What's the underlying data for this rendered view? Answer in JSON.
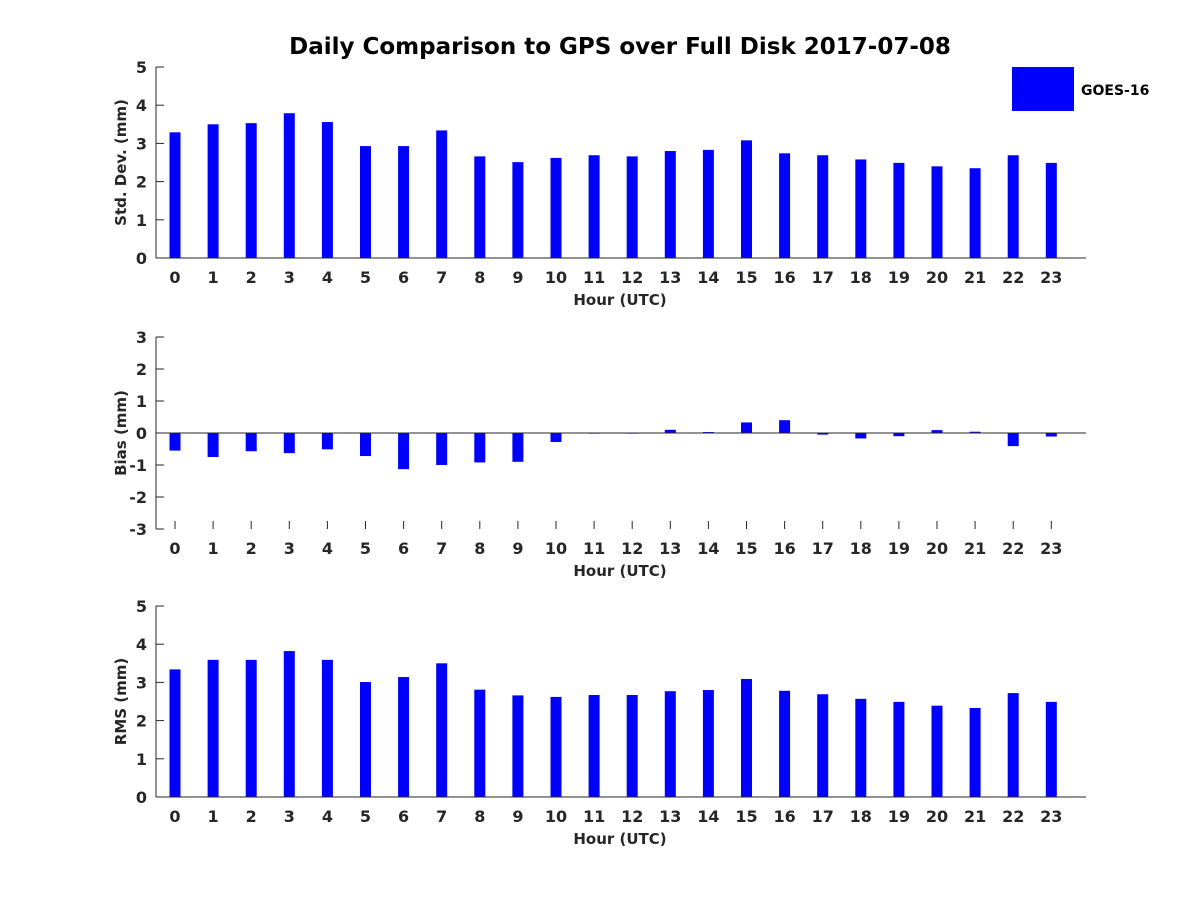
{
  "title": "Daily Comparison to GPS over Full Disk 2017-07-08",
  "colors": {
    "bar": "#0000ff",
    "axis": "#262626"
  },
  "legend": {
    "label": "GOES-16",
    "position": "top-right"
  },
  "chart_data": [
    {
      "type": "bar",
      "title": "Daily Comparison to GPS over Full Disk 2017-07-08",
      "xlabel": "Hour (UTC)",
      "ylabel": "Std. Dev. (mm)",
      "categories": [
        "0",
        "1",
        "2",
        "3",
        "4",
        "5",
        "6",
        "7",
        "8",
        "9",
        "10",
        "11",
        "12",
        "13",
        "14",
        "15",
        "16",
        "17",
        "18",
        "19",
        "20",
        "21",
        "22",
        "23"
      ],
      "series": [
        {
          "name": "GOES-16",
          "values": [
            3.29,
            3.5,
            3.53,
            3.79,
            3.56,
            2.93,
            2.93,
            3.34,
            2.66,
            2.51,
            2.62,
            2.69,
            2.66,
            2.8,
            2.83,
            3.08,
            2.74,
            2.69,
            2.58,
            2.49,
            2.4,
            2.35,
            2.69,
            2.49
          ]
        }
      ],
      "ylim": [
        0,
        5
      ],
      "yticks": [
        "0",
        "1",
        "2",
        "3",
        "4",
        "5"
      ]
    },
    {
      "type": "bar",
      "xlabel": "Hour (UTC)",
      "ylabel": "Bias (mm)",
      "categories": [
        "0",
        "1",
        "2",
        "3",
        "4",
        "5",
        "6",
        "7",
        "8",
        "9",
        "10",
        "11",
        "12",
        "13",
        "14",
        "15",
        "16",
        "17",
        "18",
        "19",
        "20",
        "21",
        "22",
        "23"
      ],
      "series": [
        {
          "name": "GOES-16",
          "values": [
            -0.55,
            -0.75,
            -0.57,
            -0.63,
            -0.51,
            -0.72,
            -1.13,
            -1.0,
            -0.92,
            -0.9,
            -0.28,
            -0.02,
            -0.02,
            0.1,
            0.03,
            0.33,
            0.4,
            -0.05,
            -0.17,
            -0.1,
            0.09,
            0.04,
            -0.41,
            -0.11
          ]
        }
      ],
      "ylim": [
        -3,
        3
      ],
      "yticks": [
        "-3",
        "-2",
        "-1",
        "0",
        "1",
        "2",
        "3"
      ]
    },
    {
      "type": "bar",
      "xlabel": "Hour (UTC)",
      "ylabel": "RMS (mm)",
      "categories": [
        "0",
        "1",
        "2",
        "3",
        "4",
        "5",
        "6",
        "7",
        "8",
        "9",
        "10",
        "11",
        "12",
        "13",
        "14",
        "15",
        "16",
        "17",
        "18",
        "19",
        "20",
        "21",
        "22",
        "23"
      ],
      "series": [
        {
          "name": "GOES-16",
          "values": [
            3.34,
            3.59,
            3.59,
            3.82,
            3.59,
            3.01,
            3.14,
            3.5,
            2.81,
            2.66,
            2.62,
            2.67,
            2.67,
            2.77,
            2.8,
            3.09,
            2.78,
            2.69,
            2.57,
            2.49,
            2.39,
            2.33,
            2.72,
            2.49
          ]
        }
      ],
      "ylim": [
        0,
        5
      ],
      "yticks": [
        "0",
        "1",
        "2",
        "3",
        "4",
        "5"
      ]
    }
  ]
}
